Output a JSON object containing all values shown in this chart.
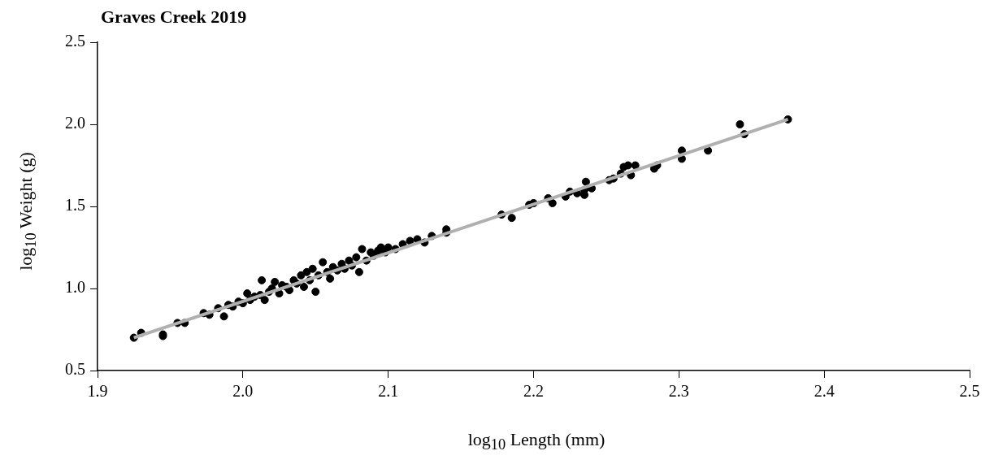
{
  "chart_data": {
    "type": "scatter",
    "title": "Graves Creek 2019",
    "xlabel": "log$_{10}$ Length (mm)",
    "ylabel": "log$_{10}$ Weight (g)",
    "xlim": [
      1.9,
      2.5
    ],
    "xticks": [
      {
        "value": 1.9,
        "label": "1.9"
      },
      {
        "value": 2.0,
        "label": "2.0"
      },
      {
        "value": 2.1,
        "label": "2.1"
      },
      {
        "value": 2.2,
        "label": "2.2"
      },
      {
        "value": 2.3,
        "label": "2.3"
      },
      {
        "value": 2.4,
        "label": "2.4"
      },
      {
        "value": 2.5,
        "label": "2.5"
      }
    ],
    "ylim": [
      0.5,
      2.5
    ],
    "yticks": [
      {
        "value": 0.5,
        "label": "0.5"
      },
      {
        "value": 1.0,
        "label": "1.0"
      },
      {
        "value": 1.5,
        "label": "1.5"
      },
      {
        "value": 2.0,
        "label": "2.0"
      },
      {
        "value": 2.5,
        "label": "2.5"
      }
    ],
    "grid": false,
    "legend": false,
    "marker": "circle",
    "series": [
      {
        "type": "line",
        "color": "#b0b0b0",
        "marker": "none",
        "x": [
          1.925,
          2.375
        ],
        "values": [
          0.7,
          2.03
        ]
      },
      {
        "color": "#000000",
        "x": [
          1.925,
          1.93,
          1.945,
          1.945,
          1.955,
          1.96,
          1.973,
          1.977,
          1.983,
          1.987,
          1.99,
          1.993,
          1.997,
          2.0,
          2.003,
          2.005,
          2.008,
          2.012,
          2.013,
          2.015,
          2.018,
          2.02,
          2.022,
          2.025,
          2.027,
          2.03,
          2.032,
          2.035,
          2.037,
          2.04,
          2.042,
          2.044,
          2.046,
          2.048,
          2.05,
          2.052,
          2.055,
          2.058,
          2.06,
          2.062,
          2.065,
          2.068,
          2.07,
          2.073,
          2.075,
          2.078,
          2.08,
          2.082,
          2.085,
          2.088,
          2.09,
          2.093,
          2.095,
          2.098,
          2.1,
          2.105,
          2.11,
          2.115,
          2.12,
          2.125,
          2.13,
          2.14,
          2.14,
          2.178,
          2.185,
          2.197,
          2.2,
          2.21,
          2.213,
          2.222,
          2.225,
          2.23,
          2.235,
          2.235,
          2.236,
          2.24,
          2.252,
          2.255,
          2.26,
          2.262,
          2.265,
          2.267,
          2.27,
          2.283,
          2.285,
          2.302,
          2.302,
          2.32,
          2.342,
          2.345,
          2.375
        ],
        "values": [
          0.7,
          0.73,
          0.72,
          0.71,
          0.79,
          0.79,
          0.85,
          0.84,
          0.88,
          0.83,
          0.9,
          0.89,
          0.92,
          0.91,
          0.97,
          0.93,
          0.95,
          0.96,
          1.05,
          0.93,
          0.98,
          1.0,
          1.04,
          0.97,
          1.02,
          1.01,
          0.99,
          1.05,
          1.03,
          1.08,
          1.01,
          1.1,
          1.05,
          1.12,
          0.98,
          1.08,
          1.16,
          1.1,
          1.06,
          1.13,
          1.11,
          1.15,
          1.12,
          1.17,
          1.14,
          1.19,
          1.1,
          1.24,
          1.17,
          1.22,
          1.2,
          1.23,
          1.25,
          1.22,
          1.25,
          1.24,
          1.27,
          1.29,
          1.3,
          1.28,
          1.32,
          1.36,
          1.34,
          1.45,
          1.43,
          1.51,
          1.52,
          1.55,
          1.52,
          1.56,
          1.59,
          1.58,
          1.57,
          1.6,
          1.65,
          1.61,
          1.66,
          1.67,
          1.7,
          1.74,
          1.75,
          1.69,
          1.75,
          1.73,
          1.75,
          1.84,
          1.79,
          1.84,
          2.0,
          1.94,
          2.03
        ]
      }
    ]
  }
}
